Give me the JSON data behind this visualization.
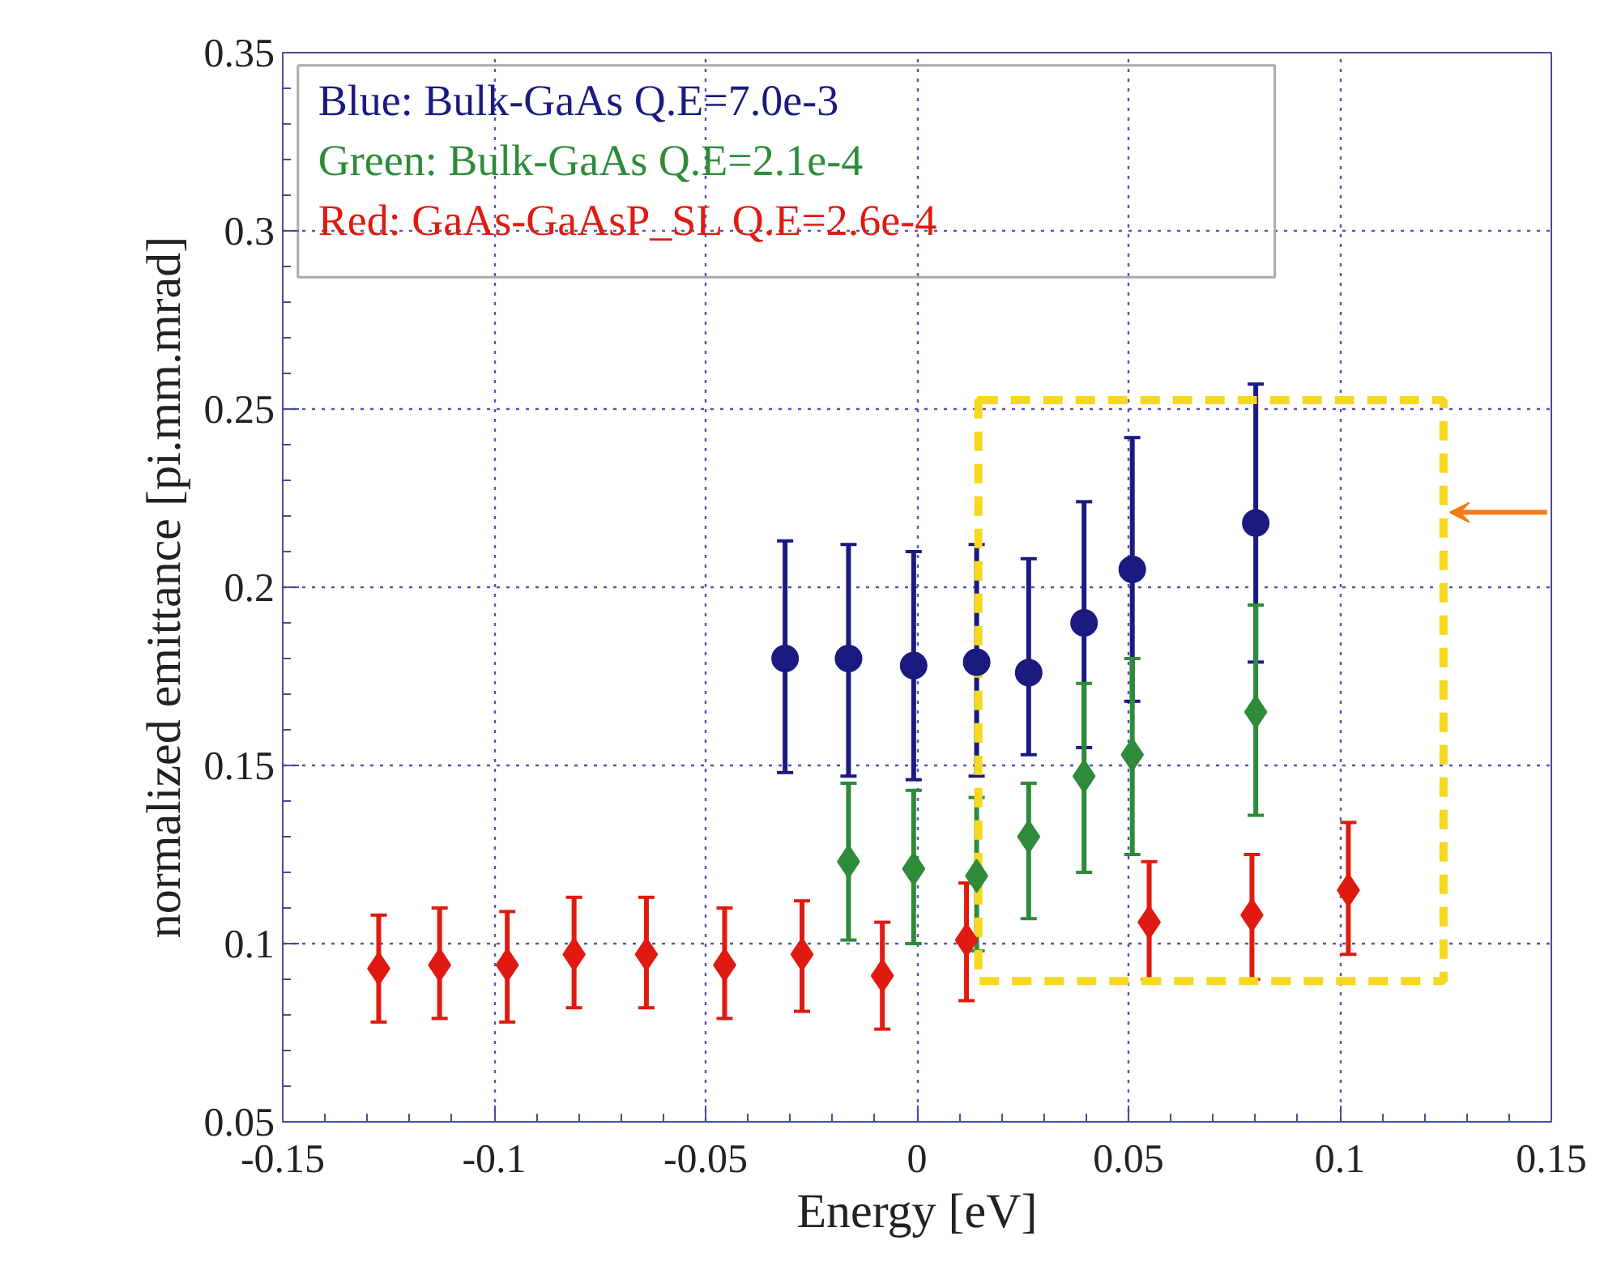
{
  "chart_data": {
    "type": "scatter",
    "xlabel": "Energy [eV]",
    "ylabel": "normalized emittance [pi.mm.mrad]",
    "xlim": [
      -0.15,
      0.15
    ],
    "xticks": [
      -0.15,
      -0.1,
      -0.05,
      0,
      0.05,
      0.1,
      0.15
    ],
    "ylim": [
      0.05,
      0.35
    ],
    "yticks": [
      0.05,
      0.1,
      0.15,
      0.2,
      0.25,
      0.3,
      0.35
    ],
    "grid": true,
    "legend": "top left",
    "series": [
      {
        "name": "Blue: Bulk-GaAs Q.E=7.0e-3",
        "color": "#1a1a80",
        "marker": "circle",
        "x": [
          -0.0312,
          -0.0162,
          -0.0008,
          0.0141,
          0.0264,
          0.0395,
          0.0509,
          0.0801
        ],
        "values": [
          0.18,
          0.18,
          0.178,
          0.179,
          0.176,
          0.19,
          0.205,
          0.218
        ],
        "errors": [
          [
            0.148,
            0.213
          ],
          [
            0.147,
            0.212
          ],
          [
            0.146,
            0.21
          ],
          [
            0.147,
            0.212
          ],
          [
            0.153,
            0.208
          ],
          [
            0.155,
            0.224
          ],
          [
            0.168,
            0.242
          ],
          [
            0.179,
            0.257
          ]
        ]
      },
      {
        "name": "Green: Bulk-GaAs Q.E=2.1e-4",
        "color": "#2e8b3a",
        "marker": "diamond",
        "x": [
          -0.0162,
          -0.0008,
          0.0141,
          0.0264,
          0.0395,
          0.0509,
          0.0801
        ],
        "values": [
          0.123,
          0.121,
          0.119,
          0.13,
          0.147,
          0.153,
          0.165
        ],
        "errors": [
          [
            0.101,
            0.145
          ],
          [
            0.1,
            0.143
          ],
          [
            0.098,
            0.141
          ],
          [
            0.107,
            0.145
          ],
          [
            0.12,
            0.173
          ],
          [
            0.125,
            0.18
          ],
          [
            0.136,
            0.195
          ]
        ]
      },
      {
        "name": "Red: GaAs-GaAsP_SL Q.E=2.6e-4",
        "color": "#e01a10",
        "marker": "diamond",
        "x": [
          -0.1273,
          -0.1129,
          -0.0969,
          -0.0811,
          -0.064,
          -0.0455,
          -0.0272,
          -0.0082,
          0.0117,
          0.0549,
          0.0792,
          0.102
        ],
        "values": [
          0.093,
          0.094,
          0.094,
          0.097,
          0.097,
          0.094,
          0.097,
          0.091,
          0.101,
          0.106,
          0.108,
          0.115
        ],
        "errors": [
          [
            0.078,
            0.108
          ],
          [
            0.079,
            0.11
          ],
          [
            0.078,
            0.109
          ],
          [
            0.082,
            0.113
          ],
          [
            0.082,
            0.113
          ],
          [
            0.079,
            0.11
          ],
          [
            0.081,
            0.112
          ],
          [
            0.076,
            0.106
          ],
          [
            0.084,
            0.117
          ],
          [
            0.09,
            0.123
          ],
          [
            0.09,
            0.125
          ],
          [
            0.097,
            0.134
          ]
        ]
      }
    ]
  }
}
